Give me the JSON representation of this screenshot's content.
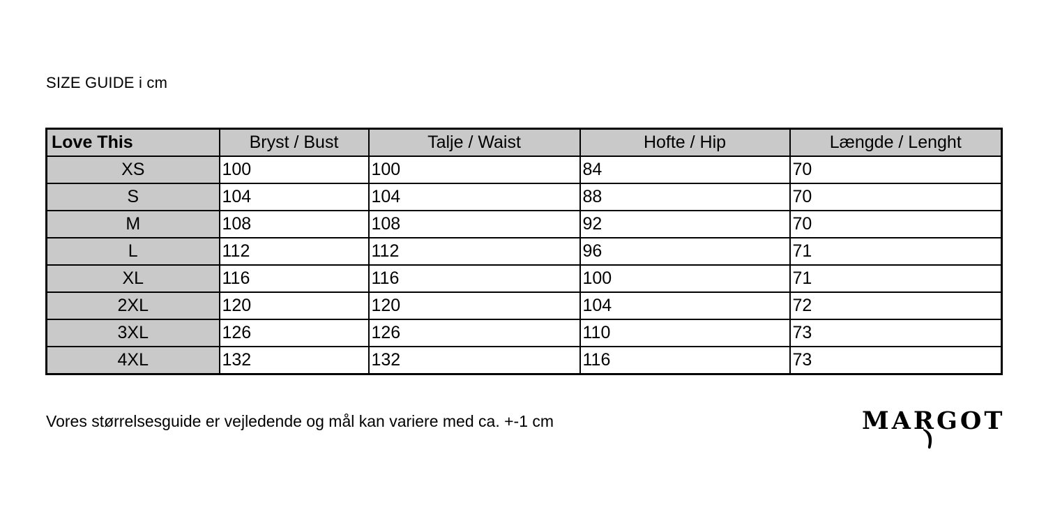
{
  "page": {
    "title": "SIZE GUIDE i cm",
    "note": "Vores størrelsesguide er vejledende og mål kan variere med ca. +-1 cm",
    "brand": "MARGOT"
  },
  "size_table": {
    "columns": [
      "Love This",
      "Bryst / Bust",
      "Talje / Waist",
      "Hofte / Hip",
      "Længde / Lenght"
    ],
    "rows": [
      {
        "size": "XS",
        "bust": "100",
        "waist": "100",
        "hip": "84",
        "length": "70"
      },
      {
        "size": "S",
        "bust": "104",
        "waist": "104",
        "hip": "88",
        "length": "70"
      },
      {
        "size": "M",
        "bust": "108",
        "waist": "108",
        "hip": "92",
        "length": "70"
      },
      {
        "size": "L",
        "bust": "112",
        "waist": "112",
        "hip": "96",
        "length": "71"
      },
      {
        "size": "XL",
        "bust": "116",
        "waist": "116",
        "hip": "100",
        "length": "71"
      },
      {
        "size": "2XL",
        "bust": "120",
        "waist": "120",
        "hip": "104",
        "length": "72"
      },
      {
        "size": "3XL",
        "bust": "126",
        "waist": "126",
        "hip": "110",
        "length": "73"
      },
      {
        "size": "4XL",
        "bust": "132",
        "waist": "132",
        "hip": "116",
        "length": "73"
      }
    ],
    "colors": {
      "header_bg": "#c9c9c9",
      "border": "#000000",
      "text": "#000000",
      "background": "#ffffff"
    }
  }
}
